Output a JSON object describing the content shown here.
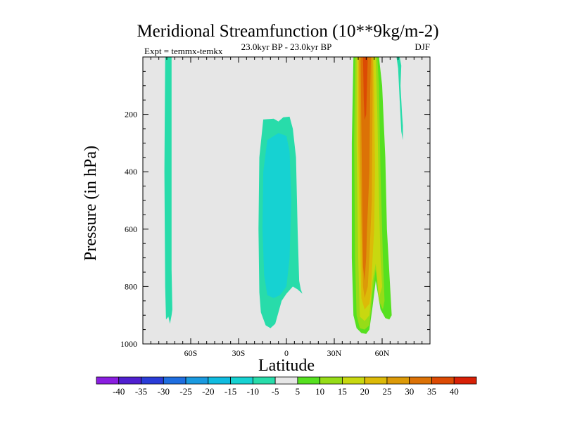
{
  "chart_data": {
    "type": "contour",
    "title": "Meridional Streamfunction (10**9kg/m-2)",
    "left_label": "Expt = temmx-temkx",
    "center_label": "23.0kyr BP - 23.0kyr BP",
    "right_label": "DJF",
    "xlabel": "Latitude",
    "ylabel": "Pressure (in hPa)",
    "xlim": [
      -90,
      90
    ],
    "ylim": [
      1000,
      0
    ],
    "x_ticks": [
      {
        "value": -60,
        "label": "60S"
      },
      {
        "value": -30,
        "label": "30S"
      },
      {
        "value": 0,
        "label": "0"
      },
      {
        "value": 30,
        "label": "30N"
      },
      {
        "value": 60,
        "label": "60N"
      }
    ],
    "y_ticks": [
      {
        "value": 200,
        "label": "200"
      },
      {
        "value": 400,
        "label": "400"
      },
      {
        "value": 600,
        "label": "600"
      },
      {
        "value": 800,
        "label": "800"
      },
      {
        "value": 1000,
        "label": "1000"
      }
    ],
    "background_color": "#e6e6e6",
    "colorbar": {
      "labels": [
        "-40",
        "-35",
        "-30",
        "-25",
        "-20",
        "-15",
        "-10",
        "-5",
        "5",
        "10",
        "15",
        "20",
        "25",
        "30",
        "35",
        "40"
      ],
      "colors": [
        "#8a1ee0",
        "#5020d0",
        "#2a3cd8",
        "#1f6ee0",
        "#1a9ae0",
        "#10bce0",
        "#16d2d2",
        "#28dcaa",
        "#e6e6e6",
        "#56e020",
        "#96dc18",
        "#c8d810",
        "#dcba08",
        "#dc9a08",
        "#dc7206",
        "#dc4a04",
        "#d82006"
      ]
    },
    "regions": [
      {
        "name": "southern-cell",
        "level": "-5",
        "polygon": [
          [
            -76,
            0
          ],
          [
            -72,
            0
          ],
          [
            -72,
            740
          ],
          [
            -71.5,
            880
          ],
          [
            -72,
            900
          ],
          [
            -73,
            930
          ],
          [
            -74,
            905
          ],
          [
            -75.5,
            915
          ],
          [
            -76,
            800
          ],
          [
            -76.5,
            400
          ]
        ]
      },
      {
        "name": "tropical-cell",
        "level": "-5",
        "polygon": [
          [
            -14.5,
            218
          ],
          [
            -8,
            215
          ],
          [
            -5,
            225
          ],
          [
            -2,
            210
          ],
          [
            2,
            208
          ],
          [
            4,
            250
          ],
          [
            6,
            350
          ],
          [
            7,
            600
          ],
          [
            8,
            780
          ],
          [
            9,
            810
          ],
          [
            10,
            825
          ],
          [
            7,
            810
          ],
          [
            4,
            800
          ],
          [
            0,
            825
          ],
          [
            -3,
            850
          ],
          [
            -7,
            930
          ],
          [
            -10,
            945
          ],
          [
            -13,
            935
          ],
          [
            -16,
            890
          ],
          [
            -17,
            820
          ],
          [
            -17.5,
            600
          ],
          [
            -17,
            350
          ]
        ]
      },
      {
        "name": "tropical-cell-core",
        "level": "-10",
        "polygon": [
          [
            -12,
            290
          ],
          [
            -5,
            265
          ],
          [
            0,
            275
          ],
          [
            2,
            330
          ],
          [
            3,
            500
          ],
          [
            2,
            700
          ],
          [
            0,
            800
          ],
          [
            -4,
            830
          ],
          [
            -8,
            840
          ],
          [
            -12,
            830
          ],
          [
            -14,
            760
          ],
          [
            -15,
            600
          ],
          [
            -14.5,
            400
          ]
        ]
      },
      {
        "name": "northern-cell",
        "level": "5",
        "polygon": [
          [
            42,
            0
          ],
          [
            58,
            0
          ],
          [
            60,
            100
          ],
          [
            62,
            350
          ],
          [
            63,
            600
          ],
          [
            64.5,
            750
          ],
          [
            66,
            900
          ],
          [
            64.5,
            915
          ],
          [
            62,
            910
          ],
          [
            59,
            880
          ],
          [
            56,
            780
          ],
          [
            54,
            870
          ],
          [
            52,
            950
          ],
          [
            50,
            965
          ],
          [
            47,
            962
          ],
          [
            44,
            945
          ],
          [
            42,
            900
          ],
          [
            41,
            700
          ],
          [
            41,
            300
          ]
        ]
      },
      {
        "name": "northern-cell-10",
        "level": "10",
        "polygon": [
          [
            43,
            0
          ],
          [
            57,
            0
          ],
          [
            58,
            100
          ],
          [
            59,
            400
          ],
          [
            60.5,
            700
          ],
          [
            61.5,
            850
          ],
          [
            60.5,
            880
          ],
          [
            58,
            850
          ],
          [
            56,
            740
          ],
          [
            54,
            820
          ],
          [
            52,
            935
          ],
          [
            49,
            950
          ],
          [
            46,
            945
          ],
          [
            44,
            900
          ],
          [
            43,
            700
          ],
          [
            42.5,
            300
          ]
        ]
      },
      {
        "name": "northern-cell-15",
        "level": "15",
        "polygon": [
          [
            44,
            0
          ],
          [
            56,
            0
          ],
          [
            57,
            200
          ],
          [
            58,
            500
          ],
          [
            59,
            700
          ],
          [
            60,
            800
          ],
          [
            58,
            840
          ],
          [
            56,
            720
          ],
          [
            54,
            780
          ],
          [
            52,
            900
          ],
          [
            49,
            920
          ],
          [
            46,
            905
          ],
          [
            45,
            700
          ],
          [
            44,
            300
          ]
        ]
      },
      {
        "name": "northern-cell-20",
        "level": "20",
        "polygon": [
          [
            45,
            0
          ],
          [
            54.5,
            0
          ],
          [
            55,
            120
          ],
          [
            55.5,
            400
          ],
          [
            55,
            600
          ],
          [
            54,
            700
          ],
          [
            53,
            820
          ],
          [
            52,
            860
          ],
          [
            49,
            880
          ],
          [
            47,
            840
          ],
          [
            46,
            600
          ],
          [
            45,
            300
          ]
        ]
      },
      {
        "name": "northern-cell-25",
        "level": "25",
        "polygon": [
          [
            45.5,
            0
          ],
          [
            54,
            0
          ],
          [
            54,
            150
          ],
          [
            53.5,
            500
          ],
          [
            52,
            700
          ],
          [
            51,
            800
          ],
          [
            49,
            840
          ],
          [
            48,
            800
          ],
          [
            47,
            600
          ],
          [
            46,
            300
          ]
        ]
      },
      {
        "name": "northern-cell-30",
        "level": "30",
        "polygon": [
          [
            46.5,
            0
          ],
          [
            53,
            0
          ],
          [
            52.5,
            120
          ],
          [
            52,
            400
          ],
          [
            50.5,
            600
          ],
          [
            50,
            700
          ],
          [
            49,
            780
          ],
          [
            48,
            730
          ],
          [
            47.5,
            500
          ],
          [
            47,
            250
          ]
        ]
      },
      {
        "name": "northern-cell-35",
        "level": "35",
        "polygon": [
          [
            48,
            0
          ],
          [
            51,
            0
          ],
          [
            50.5,
            100
          ],
          [
            50,
            200
          ],
          [
            49,
            220
          ],
          [
            48.5,
            150
          ]
        ]
      },
      {
        "name": "polar-sliver",
        "level": "-5",
        "polygon": [
          [
            69,
            0
          ],
          [
            71,
            0
          ],
          [
            72,
            30
          ],
          [
            71.5,
            100
          ],
          [
            72.5,
            200
          ],
          [
            73,
            240
          ],
          [
            73,
            290
          ],
          [
            72,
            260
          ],
          [
            71,
            150
          ],
          [
            70,
            40
          ]
        ]
      }
    ]
  }
}
